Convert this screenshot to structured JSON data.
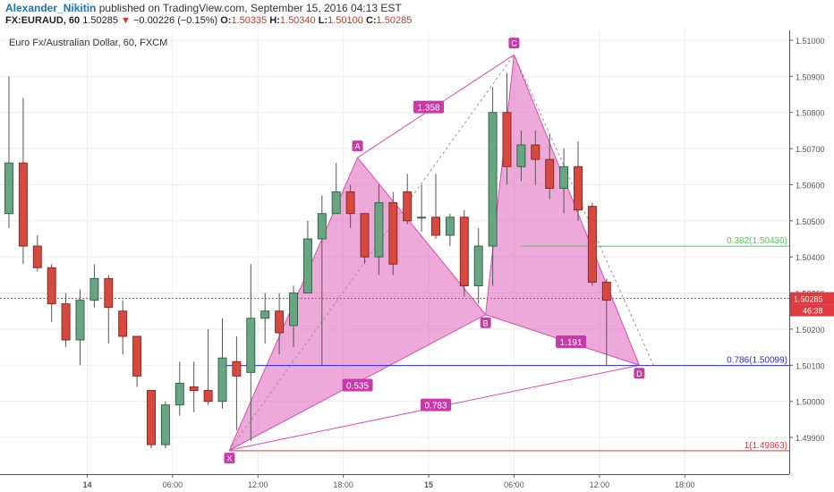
{
  "header": {
    "author": "Alexander_Nikitin",
    "published": "published on TradingView.com, September 15, 2016 04:13 EST",
    "symbol": "FX:EURAUD, 60",
    "last": "1.50285",
    "change": "−0.00226 (−0.15%)",
    "o_label": "O:",
    "o": "1.50335",
    "h_label": "H:",
    "h": "1.50340",
    "l_label": "L:",
    "l": "1.50100",
    "c_label": "C:",
    "c": "1.50285"
  },
  "chart_data": {
    "type": "candlestick",
    "title": "Euro Fx/Australian Dollar, 60, FXCM",
    "ylim": [
      1.49855,
      1.51035
    ],
    "y_ticks": [
      "1.51000",
      "1.50900",
      "1.50800",
      "1.50700",
      "1.50600",
      "1.50500",
      "1.50400",
      "1.50300",
      "1.50200",
      "1.50100",
      "1.50000",
      "1.49900"
    ],
    "x_ticks": [
      {
        "label": "14",
        "t": 5.5,
        "bold": true
      },
      {
        "label": "06:00",
        "t": 11.5
      },
      {
        "label": "12:00",
        "t": 17.5
      },
      {
        "label": "18:00",
        "t": 23.5
      },
      {
        "label": "15",
        "t": 29.5,
        "bold": true
      },
      {
        "label": "06:00",
        "t": 35.5
      },
      {
        "label": "12:00",
        "t": 41.5
      },
      {
        "label": "18:00",
        "t": 47.5
      }
    ],
    "candles": [
      {
        "o": 1.5052,
        "h": 1.509,
        "l": 1.5048,
        "c": 1.5066
      },
      {
        "o": 1.5066,
        "h": 1.5084,
        "l": 1.5038,
        "c": 1.5043
      },
      {
        "o": 1.5043,
        "h": 1.5046,
        "l": 1.5036,
        "c": 1.5037
      },
      {
        "o": 1.5037,
        "h": 1.5038,
        "l": 1.5022,
        "c": 1.5027
      },
      {
        "o": 1.5027,
        "h": 1.503,
        "l": 1.5015,
        "c": 1.5017
      },
      {
        "o": 1.5017,
        "h": 1.5031,
        "l": 1.501,
        "c": 1.5028
      },
      {
        "o": 1.5028,
        "h": 1.5038,
        "l": 1.5026,
        "c": 1.5034
      },
      {
        "o": 1.5034,
        "h": 1.5035,
        "l": 1.5016,
        "c": 1.5026
      },
      {
        "o": 1.5025,
        "h": 1.5028,
        "l": 1.5013,
        "c": 1.5018
      },
      {
        "o": 1.5018,
        "h": 1.5018,
        "l": 1.5004,
        "c": 1.5007
      },
      {
        "o": 1.5003,
        "h": 1.5003,
        "l": 1.4987,
        "c": 1.4988
      },
      {
        "o": 1.4988,
        "h": 1.5,
        "l": 1.4987,
        "c": 1.4999
      },
      {
        "o": 1.4999,
        "h": 1.5011,
        "l": 1.4996,
        "c": 1.5005
      },
      {
        "o": 1.5004,
        "h": 1.5011,
        "l": 1.4997,
        "c": 1.5003
      },
      {
        "o": 1.5003,
        "h": 1.502,
        "l": 1.4999,
        "c": 1.5
      },
      {
        "o": 1.5,
        "h": 1.5023,
        "l": 1.4998,
        "c": 1.5012
      },
      {
        "o": 1.5011,
        "h": 1.5018,
        "l": 1.4992,
        "c": 1.5007
      },
      {
        "o": 1.5008,
        "h": 1.5038,
        "l": 1.4989,
        "c": 1.5023
      },
      {
        "o": 1.5023,
        "h": 1.503,
        "l": 1.5016,
        "c": 1.5025
      },
      {
        "o": 1.5025,
        "h": 1.503,
        "l": 1.5013,
        "c": 1.5019
      },
      {
        "o": 1.5021,
        "h": 1.5032,
        "l": 1.5015,
        "c": 1.503
      },
      {
        "o": 1.503,
        "h": 1.505,
        "l": 1.503,
        "c": 1.5045
      },
      {
        "o": 1.5045,
        "h": 1.5057,
        "l": 1.501,
        "c": 1.5052
      },
      {
        "o": 1.5052,
        "h": 1.5066,
        "l": 1.5052,
        "c": 1.5058
      },
      {
        "o": 1.5058,
        "h": 1.506,
        "l": 1.5048,
        "c": 1.5052
      },
      {
        "o": 1.5052,
        "h": 1.5052,
        "l": 1.5038,
        "c": 1.504
      },
      {
        "o": 1.504,
        "h": 1.506,
        "l": 1.5035,
        "c": 1.5055
      },
      {
        "o": 1.5055,
        "h": 1.5058,
        "l": 1.5035,
        "c": 1.5038
      },
      {
        "o": 1.5058,
        "h": 1.5063,
        "l": 1.5049,
        "c": 1.505
      },
      {
        "o": 1.5051,
        "h": 1.506,
        "l": 1.5047,
        "c": 1.5051
      },
      {
        "o": 1.5051,
        "h": 1.5063,
        "l": 1.5045,
        "c": 1.5046
      },
      {
        "o": 1.5046,
        "h": 1.5052,
        "l": 1.5043,
        "c": 1.5051
      },
      {
        "o": 1.5051,
        "h": 1.5053,
        "l": 1.5029,
        "c": 1.5032
      },
      {
        "o": 1.5032,
        "h": 1.5048,
        "l": 1.5027,
        "c": 1.5043
      },
      {
        "o": 1.5043,
        "h": 1.5087,
        "l": 1.5032,
        "c": 1.508
      },
      {
        "o": 1.508,
        "h": 1.5091,
        "l": 1.506,
        "c": 1.5065
      },
      {
        "o": 1.5065,
        "h": 1.5075,
        "l": 1.5061,
        "c": 1.5071
      },
      {
        "o": 1.5071,
        "h": 1.5075,
        "l": 1.506,
        "c": 1.5067
      },
      {
        "o": 1.5067,
        "h": 1.5074,
        "l": 1.5056,
        "c": 1.5059
      },
      {
        "o": 1.5059,
        "h": 1.507,
        "l": 1.5052,
        "c": 1.5065
      },
      {
        "o": 1.5065,
        "h": 1.5072,
        "l": 1.505,
        "c": 1.5053
      },
      {
        "o": 1.5054,
        "h": 1.5055,
        "l": 1.5032,
        "c": 1.5033
      },
      {
        "o": 1.5033,
        "h": 1.5034,
        "l": 1.501,
        "c": 1.5028
      }
    ],
    "pattern": {
      "points": [
        {
          "label": "X",
          "t": 15.5,
          "y": 1.49865
        },
        {
          "label": "A",
          "t": 24.5,
          "y": 1.50675
        },
        {
          "label": "B",
          "t": 33.5,
          "y": 1.5024
        },
        {
          "label": "C",
          "t": 35.5,
          "y": 1.5096
        },
        {
          "label": "D",
          "t": 44.3,
          "y": 1.501
        }
      ],
      "ratios": [
        {
          "label": "1.358",
          "t": 29.5,
          "y": 1.50815
        },
        {
          "label": "0.535",
          "t": 24.5,
          "y": 1.50045
        },
        {
          "label": "1.191",
          "t": 39.5,
          "y": 1.50165
        },
        {
          "label": "0.783",
          "t": 30.0,
          "y": 1.4999
        }
      ],
      "fill": "#e070c0",
      "line": "#d94bb3"
    },
    "levels": [
      {
        "label": "0.382(1.50430)",
        "y": 1.5043,
        "t0": 36.0,
        "color": "#4cd24c"
      },
      {
        "label": "0.786(1.50099)",
        "y": 1.50099,
        "t0": 15.0,
        "color": "#2b2bd9"
      },
      {
        "label": "1(1.49863)",
        "y": 1.49863,
        "t0": 15.5,
        "color": "#e0393e"
      }
    ],
    "current": {
      "price": "1.50285",
      "y": 1.50285,
      "countdown": "46:38",
      "color": "#e0393e"
    },
    "colors": {
      "up": "#6aa583",
      "down": "#d6493f",
      "up_border": "#2d6b44",
      "down_border": "#8c2a25",
      "grid": "#eeeeee",
      "axis_text": "#555555"
    }
  }
}
